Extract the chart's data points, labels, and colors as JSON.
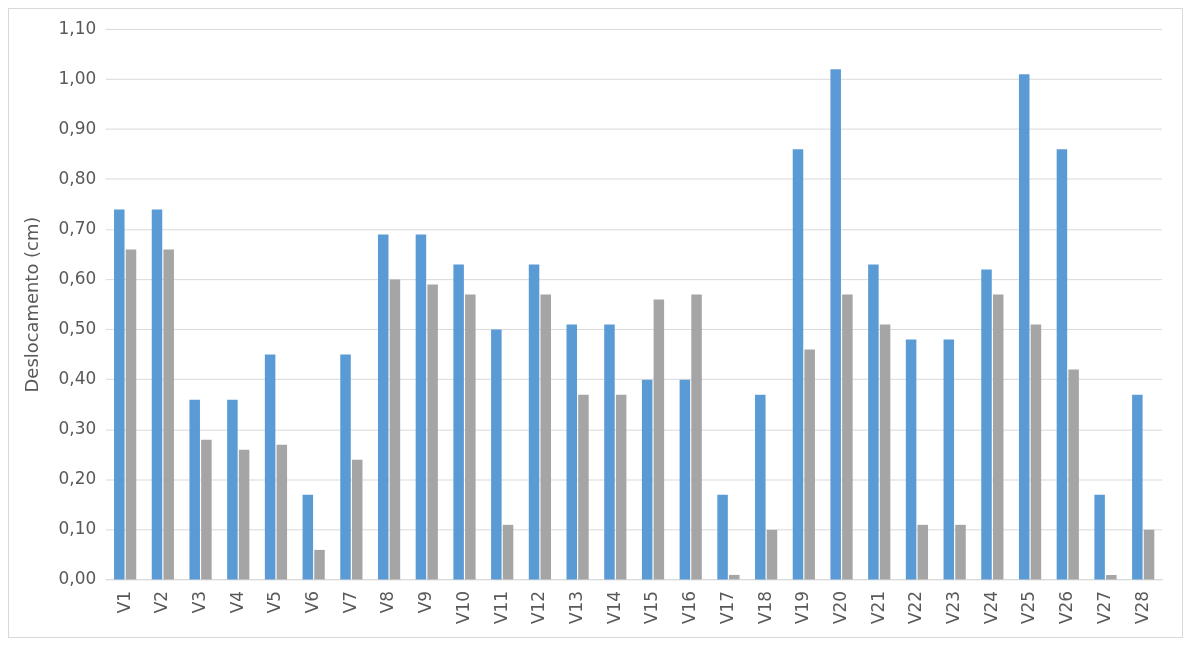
{
  "chart_data": {
    "type": "bar",
    "ylabel": "Deslocamento (cm)",
    "categories": [
      "V1",
      "V2",
      "V3",
      "V4",
      "V5",
      "V6",
      "V7",
      "V8",
      "V9",
      "V10",
      "V11",
      "V12",
      "V13",
      "V14",
      "V15",
      "V16",
      "V17",
      "V18",
      "V19",
      "V20",
      "V21",
      "V22",
      "V23",
      "V24",
      "V25",
      "V26",
      "V27",
      "V28"
    ],
    "series": [
      {
        "color": "#5b9bd5",
        "values": [
          0.74,
          0.74,
          0.36,
          0.36,
          0.45,
          0.17,
          0.45,
          0.69,
          0.69,
          0.63,
          0.5,
          0.63,
          0.51,
          0.51,
          0.4,
          0.4,
          0.17,
          0.37,
          0.86,
          1.02,
          0.63,
          0.48,
          0.48,
          0.62,
          1.01,
          0.86,
          0.17,
          0.37
        ]
      },
      {
        "color": "#a5a5a5",
        "values": [
          0.66,
          0.66,
          0.28,
          0.26,
          0.27,
          0.06,
          0.24,
          0.6,
          0.59,
          0.57,
          0.11,
          0.57,
          0.37,
          0.37,
          0.56,
          0.57,
          0.01,
          0.1,
          0.46,
          0.57,
          0.51,
          0.11,
          0.11,
          0.57,
          0.51,
          0.42,
          0.01,
          0.1
        ]
      }
    ],
    "ylim": [
      0,
      1.1
    ],
    "yticks": [
      {
        "value": 0,
        "label": "0,00"
      },
      {
        "value": 0.1,
        "label": "0,10"
      },
      {
        "value": 0.2,
        "label": "0,20"
      },
      {
        "value": 0.3,
        "label": "0,30"
      },
      {
        "value": 0.4,
        "label": "0,40"
      },
      {
        "value": 0.5,
        "label": "0,50"
      },
      {
        "value": 0.6,
        "label": "0,60"
      },
      {
        "value": 0.7,
        "label": "0,70"
      },
      {
        "value": 0.8,
        "label": "0,80"
      },
      {
        "value": 0.9,
        "label": "0,90"
      },
      {
        "value": 1.0,
        "label": "1,00"
      },
      {
        "value": 1.1,
        "label": "1,10"
      }
    ],
    "grid": "y"
  }
}
